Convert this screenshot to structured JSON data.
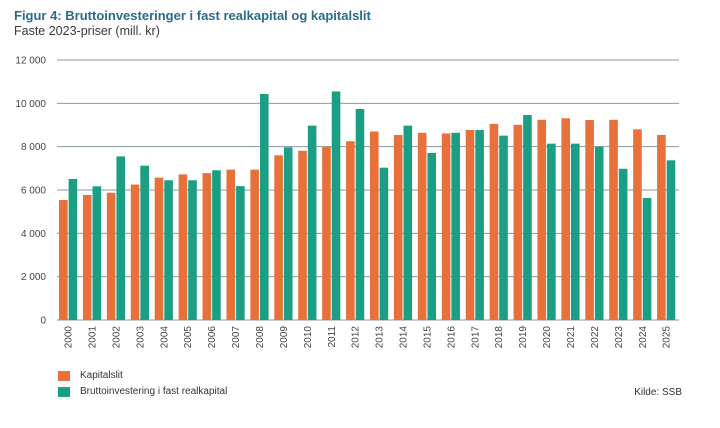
{
  "header": {
    "title": "Figur 4: Bruttoinvesteringer i fast realkapital og kapitalslit",
    "subtitle": "Faste 2023-priser (mill. kr)"
  },
  "source": "Kilde: SSB",
  "colors": {
    "kapitalslit": "#e8703a",
    "brutto": "#1a9e84",
    "grid": "#8a9aa3"
  },
  "chart_data": {
    "type": "bar",
    "title": "Figur 4: Bruttoinvesteringer i fast realkapital og kapitalslit",
    "subtitle": "Faste 2023-priser (mill. kr)",
    "xlabel": "",
    "ylabel": "",
    "ylim": [
      0,
      12000
    ],
    "yticks": [
      0,
      2000,
      4000,
      6000,
      8000,
      10000,
      12000
    ],
    "ytick_labels": [
      "0",
      "2 000",
      "4 000",
      "6 000",
      "8 000",
      "10 000",
      "12 000"
    ],
    "grid": true,
    "legend_position": "bottom-left",
    "categories": [
      "2000",
      "2001",
      "2002",
      "2003",
      "2004",
      "2005",
      "2006",
      "2007",
      "2008",
      "2009",
      "2010",
      "2011",
      "2012",
      "2013",
      "2014",
      "2015",
      "2016",
      "2017",
      "2018",
      "2019",
      "2020",
      "2021",
      "2022",
      "2023",
      "2024",
      "2025"
    ],
    "series": [
      {
        "name": "Kapitalslit",
        "color": "#e8703a",
        "values": [
          5540,
          5770,
          5870,
          6250,
          6570,
          6720,
          6780,
          6940,
          6940,
          7600,
          7810,
          8000,
          8250,
          8700,
          8540,
          8640,
          8610,
          8770,
          9050,
          9010,
          9240,
          9310,
          9230,
          9240,
          8800,
          8540
        ]
      },
      {
        "name": "Bruttoinvestering i fast realkapital",
        "color": "#1a9e84",
        "values": [
          6510,
          6170,
          7550,
          7120,
          6450,
          6450,
          6910,
          6180,
          10430,
          7970,
          8970,
          10550,
          9740,
          7030,
          8970,
          7710,
          8640,
          8770,
          8510,
          9460,
          8140,
          8140,
          8000,
          6980,
          5630,
          7370
        ]
      }
    ]
  }
}
